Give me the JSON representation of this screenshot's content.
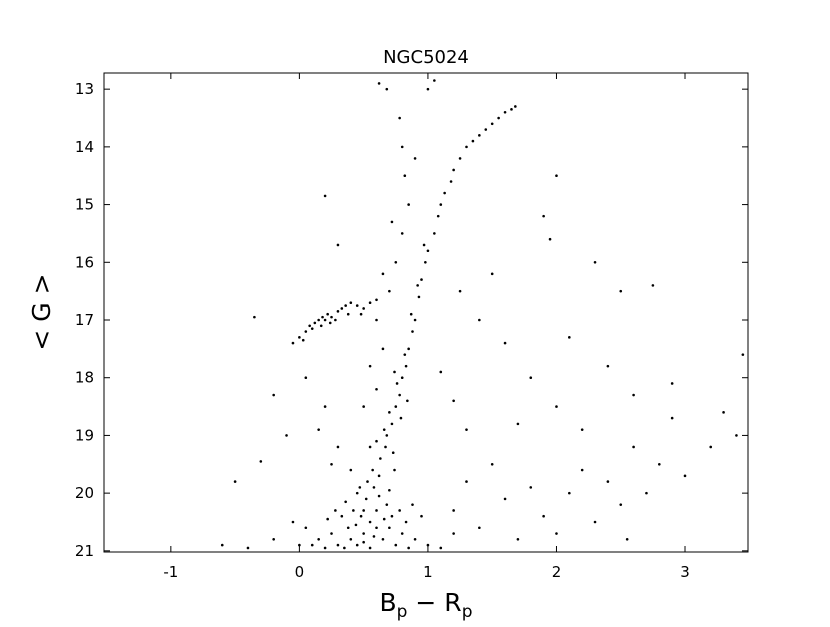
{
  "chart_data": {
    "type": "scatter",
    "title": "NGC5024",
    "xlabel": [
      "B",
      "p",
      " − R",
      "p"
    ],
    "ylabel": "< G >",
    "color": "#000000",
    "xlim": [
      -1.52,
      3.49
    ],
    "ylim": [
      21.02,
      12.72
    ],
    "xticks": [
      -1,
      0,
      1,
      2,
      3
    ],
    "yticks": [
      13,
      14,
      15,
      16,
      17,
      18,
      19,
      20,
      21
    ],
    "x": [
      0.45,
      0.5,
      0.55,
      0.6,
      0.52,
      0.58,
      0.62,
      0.48,
      0.4,
      0.35,
      0.65,
      0.7,
      0.75,
      0.3,
      0.25,
      0.42,
      0.38,
      0.68,
      0.72,
      0.8,
      0.85,
      0.55,
      0.6,
      0.5,
      0.45,
      0.57,
      0.63,
      0.67,
      0.53,
      0.47,
      0.2,
      0.15,
      0.1,
      0.9,
      1.0,
      0.05,
      0.33,
      0.28,
      0.78,
      0.83,
      0.62,
      0.44,
      0.5,
      0.58,
      0.66,
      0.36,
      0.7,
      0.74,
      0.6,
      0.4,
      -0.4,
      -0.6,
      -0.2,
      1.1,
      1.2,
      0.95,
      -0.05,
      0.0,
      0.22,
      0.88,
      0.68,
      0.72,
      0.75,
      0.7,
      0.78,
      0.8,
      0.76,
      0.83,
      0.85,
      0.82,
      0.88,
      0.9,
      0.87,
      0.93,
      0.95,
      0.92,
      0.98,
      1.0,
      0.97,
      1.05,
      1.08,
      1.1,
      1.13,
      1.18,
      1.2,
      1.25,
      1.3,
      1.35,
      1.4,
      1.45,
      1.5,
      1.55,
      1.6,
      1.65,
      1.68,
      0.73,
      0.66,
      0.79,
      0.84,
      0.74,
      0.65,
      0.6,
      0.7,
      0.75,
      0.8,
      0.85,
      0.82,
      0.8,
      0.78,
      0.68,
      0.62,
      0.55,
      0.6,
      0.65,
      0.72,
      0.9,
      1.0,
      1.05,
      0.5,
      0.55,
      -0.05,
      0.0,
      0.05,
      0.08,
      0.12,
      0.15,
      0.18,
      0.2,
      0.22,
      0.25,
      0.28,
      0.3,
      0.33,
      0.36,
      0.4,
      0.45,
      0.5,
      0.55,
      0.6,
      0.1,
      0.17,
      0.24,
      0.03,
      0.38,
      0.48,
      0.2,
      0.15,
      0.3,
      0.25,
      -0.1,
      -0.35,
      0.2,
      -0.2,
      -0.5,
      0.3,
      0.05,
      -0.3,
      1.2,
      1.3,
      1.4,
      1.5,
      1.6,
      1.7,
      1.8,
      1.9,
      2.0,
      2.1,
      2.2,
      2.3,
      2.4,
      2.5,
      2.6,
      2.7,
      2.8,
      2.9,
      3.0,
      3.2,
      3.3,
      3.4,
      3.45,
      2.75,
      2.5,
      2.3,
      2.0,
      1.9,
      1.95,
      1.5,
      1.4,
      1.6,
      1.8,
      2.0,
      2.2,
      2.4,
      2.6,
      2.9,
      1.2,
      1.3,
      1.1,
      1.7,
      2.1,
      1.25,
      2.55
    ],
    "values": [
      20.9,
      20.7,
      20.5,
      20.3,
      20.1,
      19.9,
      19.7,
      20.4,
      20.8,
      20.95,
      20.8,
      20.6,
      20.9,
      20.9,
      20.7,
      20.3,
      20.6,
      20.2,
      20.4,
      20.7,
      20.95,
      20.95,
      20.6,
      20.3,
      20.0,
      19.6,
      19.4,
      19.2,
      19.8,
      19.9,
      20.95,
      20.8,
      20.9,
      20.8,
      20.9,
      20.6,
      20.4,
      20.3,
      20.3,
      20.5,
      20.05,
      20.55,
      20.85,
      20.75,
      20.45,
      20.15,
      19.95,
      19.6,
      19.1,
      19.6,
      20.95,
      20.9,
      20.8,
      20.95,
      20.7,
      20.4,
      20.5,
      20.9,
      20.45,
      20.2,
      19.0,
      18.8,
      18.5,
      18.6,
      18.3,
      18.0,
      18.1,
      17.8,
      17.5,
      17.6,
      17.2,
      17.0,
      16.9,
      16.6,
      16.3,
      16.4,
      16.0,
      15.8,
      15.7,
      15.5,
      15.2,
      15.0,
      14.8,
      14.6,
      14.4,
      14.2,
      14.0,
      13.9,
      13.8,
      13.7,
      13.6,
      13.5,
      13.4,
      13.35,
      13.3,
      19.3,
      18.9,
      18.7,
      18.4,
      17.9,
      17.5,
      17.0,
      16.5,
      16.0,
      15.5,
      15.0,
      14.5,
      14.0,
      13.5,
      13.0,
      12.9,
      17.8,
      18.2,
      16.2,
      15.3,
      14.2,
      13.0,
      12.85,
      18.5,
      19.2,
      17.4,
      17.3,
      17.2,
      17.1,
      17.05,
      17.0,
      16.95,
      17.0,
      16.9,
      16.95,
      17.0,
      16.85,
      16.8,
      16.75,
      16.7,
      16.75,
      16.8,
      16.7,
      16.65,
      17.15,
      17.1,
      17.05,
      17.35,
      16.9,
      16.9,
      18.5,
      18.9,
      19.2,
      19.5,
      19.0,
      16.95,
      14.85,
      18.3,
      19.8,
      15.7,
      18.0,
      19.45,
      20.3,
      19.8,
      20.6,
      19.5,
      20.1,
      20.8,
      19.9,
      20.4,
      20.7,
      20.0,
      19.6,
      20.5,
      19.8,
      20.2,
      19.2,
      20.0,
      19.5,
      18.7,
      19.7,
      19.2,
      18.6,
      19.0,
      17.6,
      16.4,
      16.5,
      16.0,
      14.5,
      15.2,
      15.6,
      16.2,
      17.0,
      17.4,
      18.0,
      18.5,
      18.9,
      17.8,
      18.3,
      18.1,
      18.4,
      18.9,
      17.9,
      18.8,
      17.3,
      16.5,
      20.8
    ]
  }
}
